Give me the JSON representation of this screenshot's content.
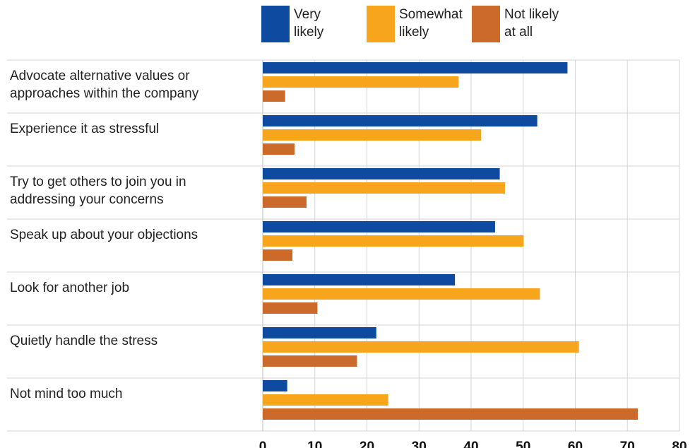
{
  "chart_data": {
    "type": "bar",
    "orientation": "horizontal",
    "categories": [
      "Advocate alternative values or approaches within the company",
      "Experience it as stressful",
      "Try to get others to join you in addressing your concerns",
      "Speak up about your objections",
      "Look for another job",
      "Quietly handle the stress",
      "Not mind too much"
    ],
    "series": [
      {
        "name": "Very likely",
        "color": "#0d4aa0",
        "values": [
          58.5,
          52.7,
          45.5,
          44.6,
          36.9,
          21.8,
          4.7
        ]
      },
      {
        "name": "Somewhat likely",
        "color": "#f7a51d",
        "values": [
          37.6,
          41.9,
          46.5,
          50.1,
          53.2,
          60.7,
          24.1
        ]
      },
      {
        "name": "Not likely at all",
        "color": "#cc6a2b",
        "values": [
          4.3,
          6.1,
          8.4,
          5.7,
          10.5,
          18.1,
          72.0
        ]
      }
    ],
    "xlim": [
      0,
      80
    ],
    "xticks": [
      0,
      10,
      20,
      30,
      40,
      50,
      60,
      70,
      80
    ],
    "title": "",
    "xlabel": "",
    "ylabel": "",
    "grid": "vertical",
    "legend": "top",
    "legend_lines": [
      [
        "Very",
        "likely"
      ],
      [
        "Somewhat",
        "likely"
      ],
      [
        "Not likely",
        "at all"
      ]
    ],
    "category_lines": [
      [
        "Advocate alternative values or",
        "approaches within the company"
      ],
      [
        "Experience it as stressful"
      ],
      [
        "Try to get others to join you in",
        "addressing your concerns"
      ],
      [
        "Speak up about your objections"
      ],
      [
        "Look for another job"
      ],
      [
        "Quietly handle the stress"
      ],
      [
        "Not mind too much"
      ]
    ]
  }
}
